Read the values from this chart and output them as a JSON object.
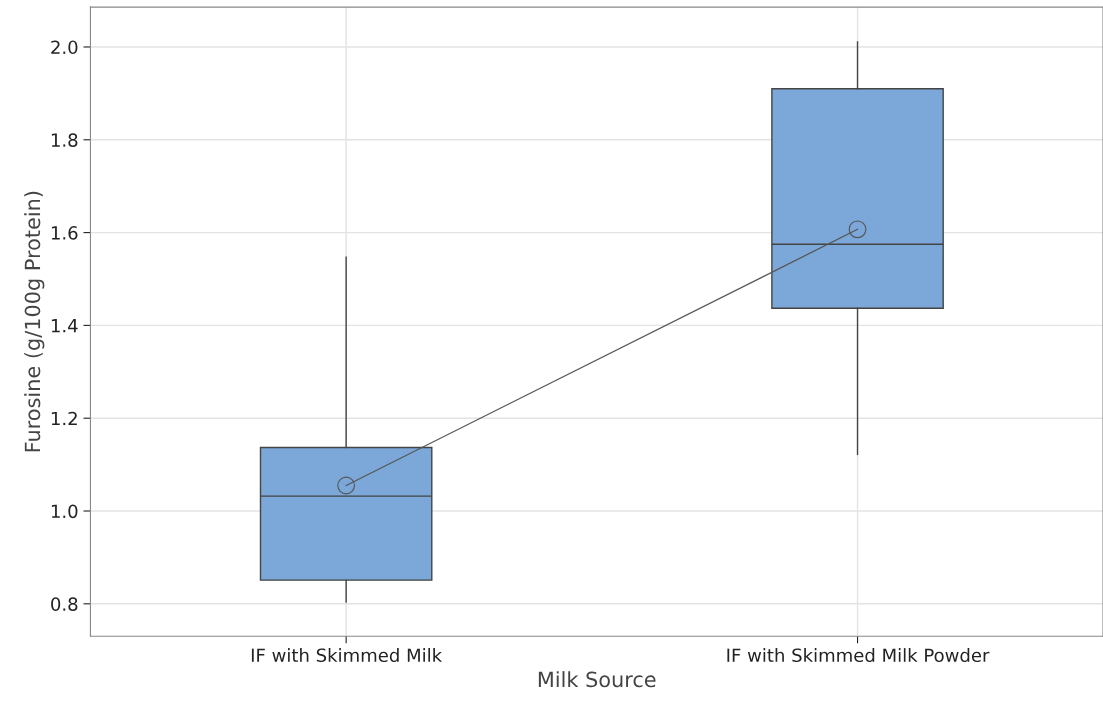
{
  "chart_data": {
    "type": "box",
    "xlabel": "Milk Source",
    "ylabel": "Furosine (g/100g Protein)",
    "categories": [
      "IF with Skimmed Milk",
      "IF with Skimmed Milk Powder"
    ],
    "boxes": [
      {
        "low": 0.804,
        "q1": 0.851,
        "median": 1.032,
        "q3": 1.137,
        "high": 1.547
      },
      {
        "low": 1.122,
        "q1": 1.437,
        "median": 1.575,
        "q3": 1.91,
        "high": 2.011
      }
    ],
    "color": "#7ba7d9",
    "series": [
      {
        "type": "line",
        "color": "#555555",
        "values": [
          1.055,
          1.607
        ],
        "marker": "circle"
      }
    ],
    "ylim": [
      0.73,
      2.086
    ],
    "yticks": [
      {
        "value": 0.8,
        "label": "0.8"
      },
      {
        "value": 1.0,
        "label": "1.0"
      },
      {
        "value": 1.2,
        "label": "1.2"
      },
      {
        "value": 1.4,
        "label": "1.4"
      },
      {
        "value": 1.6,
        "label": "1.6"
      },
      {
        "value": 1.8,
        "label": "1.8"
      },
      {
        "value": 2.0,
        "label": "2.0"
      }
    ],
    "grid": true
  }
}
